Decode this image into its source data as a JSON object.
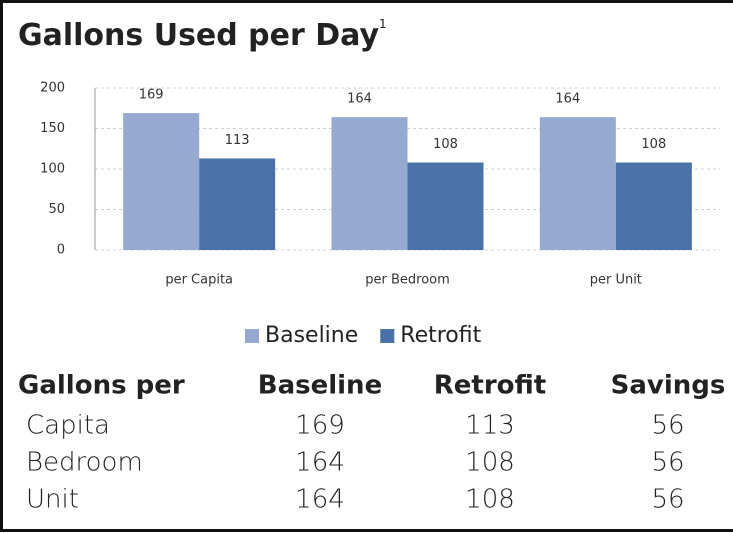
{
  "chart_data": {
    "type": "bar",
    "title": "Gallons Used per Day",
    "title_footnote": "1",
    "categories": [
      "per Capita",
      "per Bedroom",
      "per Unit"
    ],
    "series": [
      {
        "name": "Baseline",
        "color": "#95a9d1",
        "values": [
          169,
          164,
          164
        ]
      },
      {
        "name": "Retrofit",
        "color": "#4a72a8",
        "values": [
          113,
          108,
          108
        ]
      }
    ],
    "ylim": [
      0,
      200
    ],
    "yticks": [
      0,
      50,
      100,
      150,
      200
    ],
    "grid": true,
    "legend": "bottom"
  },
  "table": {
    "header": [
      "Gallons per",
      "Baseline",
      "Retrofit",
      "Savings"
    ],
    "rows": [
      [
        "Capita",
        "169",
        "113",
        "56"
      ],
      [
        "Bedroom",
        "164",
        "108",
        "56"
      ],
      [
        "Unit",
        "164",
        "108",
        "56"
      ]
    ]
  }
}
